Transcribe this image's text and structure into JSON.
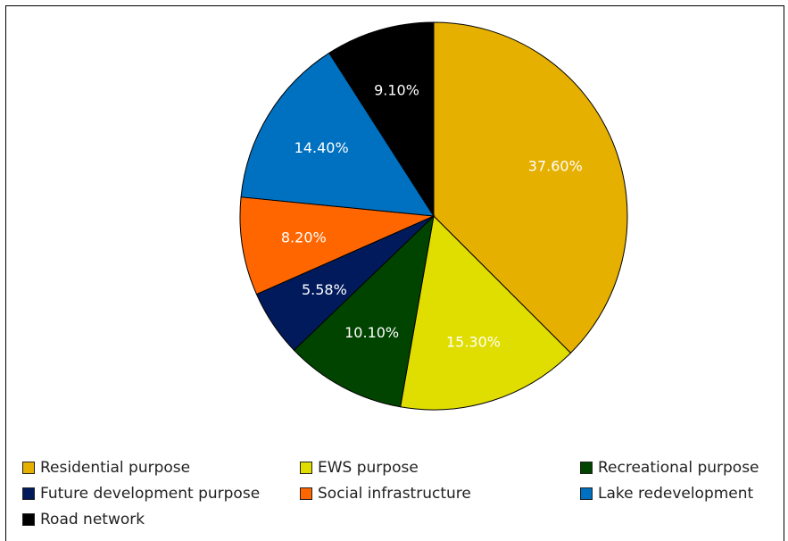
{
  "chart_data": {
    "type": "pie",
    "title": "",
    "slices": [
      {
        "name": "Residential purpose",
        "value": 37.6,
        "label": "37.60%",
        "color": "#e6b000",
        "label_color": "#ffffff"
      },
      {
        "name": "EWS purpose",
        "value": 15.3,
        "label": "15.30%",
        "color": "#e0dd00",
        "label_color": "#ffffff"
      },
      {
        "name": "Recreational purpose",
        "value": 10.1,
        "label": "10.10%",
        "color": "#004400",
        "label_color": "#ffffff"
      },
      {
        "name": "Future development purpose",
        "value": 5.58,
        "label": "5.58%",
        "color": "#001a5c",
        "label_color": "#ffffff"
      },
      {
        "name": "Social infrastructure",
        "value": 8.2,
        "label": "8.20%",
        "color": "#ff6600",
        "label_color": "#ffffff"
      },
      {
        "name": "Lake redevelopment",
        "value": 14.4,
        "label": "14.40%",
        "color": "#0070c0",
        "label_color": "#ffffff"
      },
      {
        "name": "Road network",
        "value": 9.1,
        "label": "9.10%",
        "color": "#000000",
        "label_color": "#ffffff"
      }
    ],
    "legend_position": "bottom"
  }
}
